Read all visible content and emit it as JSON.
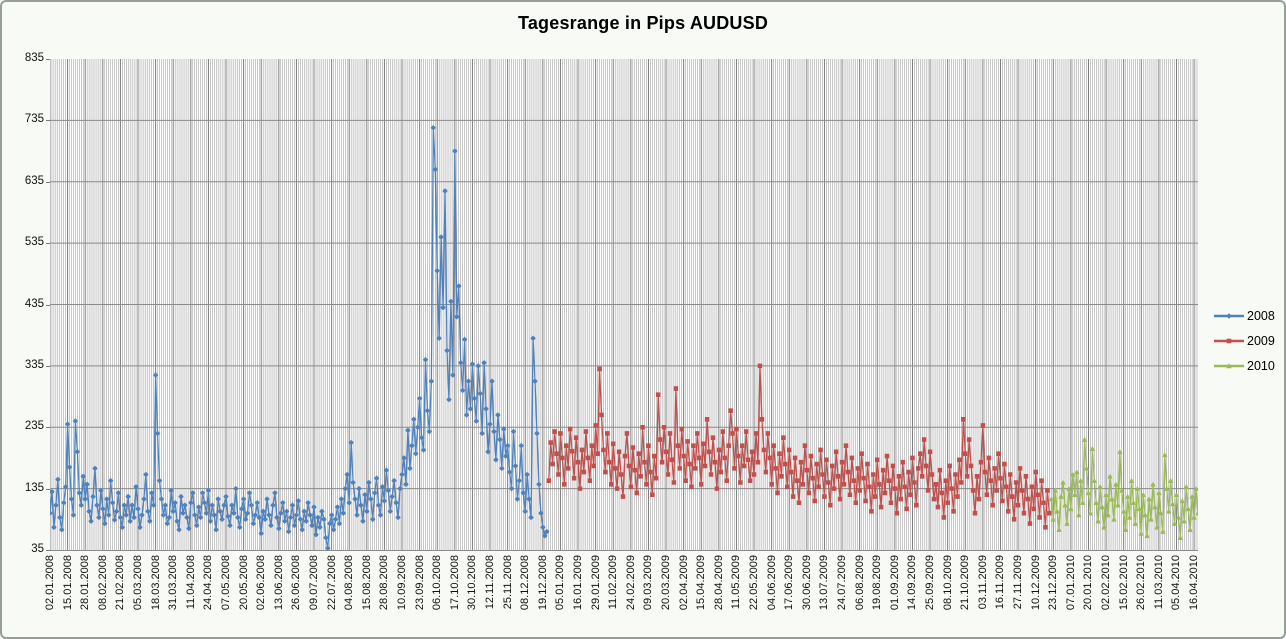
{
  "window": {
    "background": "#f7faf5",
    "border_color": "#96a096"
  },
  "chart_data": {
    "type": "line",
    "title": "Tagesrange in Pips AUDUSD",
    "xlabel": "",
    "ylabel": "",
    "ylim": [
      35,
      835
    ],
    "yticks": [
      35,
      135,
      235,
      335,
      435,
      535,
      635,
      735,
      835
    ],
    "grid": "dense-vertical-and-horizontal",
    "gridline_minor_color": "#9b9b9b",
    "gridline_major_color": "#7e7e7e",
    "legend_position": "right",
    "n_points": 588,
    "x_label_interval": 9,
    "x_labels": [
      "02.01.2008",
      "15.01.2008",
      "28.01.2008",
      "08.02.2008",
      "21.02.2008",
      "05.03.2008",
      "18.03.2008",
      "31.03.2008",
      "11.04.2008",
      "24.04.2008",
      "07.05.2008",
      "20.05.2008",
      "02.06.2008",
      "13.06.2008",
      "26.06.2008",
      "09.07.2008",
      "22.07.2008",
      "04.08.2008",
      "15.08.2008",
      "28.08.2008",
      "10.09.2008",
      "23.09.2008",
      "06.10.2008",
      "17.10.2008",
      "30.10.2008",
      "12.11.2008",
      "25.11.2008",
      "08.12.2008",
      "19.12.2008",
      "05.01.2009",
      "16.01.2009",
      "29.01.2009",
      "11.02.2009",
      "24.02.2009",
      "09.03.2009",
      "20.03.2009",
      "02.04.2009",
      "15.04.2009",
      "28.04.2009",
      "11.05.2009",
      "22.05.2009",
      "04.06.2009",
      "17.06.2009",
      "30.06.2009",
      "13.07.2009",
      "24.07.2009",
      "06.08.2009",
      "19.08.2009",
      "01.09.2009",
      "14.09.2009",
      "25.09.2009",
      "08.10.2009",
      "21.10.2009",
      "03.11.2009",
      "16.11.2009",
      "27.11.2009",
      "10.12.2009",
      "23.12.2009",
      "07.01.2010",
      "20.01.2010",
      "02.02.2010",
      "15.02.2010",
      "26.02.2010",
      "11.03.2010",
      "05.04.2010",
      "16.04.2010"
    ],
    "series": [
      {
        "name": "2008",
        "color": "#4F81BD",
        "marker": "diamond",
        "start_index": 0,
        "values": [
          95,
          130,
          72,
          108,
          150,
          88,
          68,
          112,
          138,
          240,
          170,
          118,
          92,
          245,
          195,
          128,
          108,
          155,
          118,
          142,
          98,
          82,
          122,
          168,
          108,
          88,
          132,
          102,
          78,
          118,
          92,
          148,
          112,
          84,
          98,
          128,
          88,
          72,
          108,
          92,
          122,
          82,
          108,
          88,
          138,
          102,
          72,
          92,
          118,
          158,
          98,
          82,
          128,
          108,
          320,
          225,
          148,
          118,
          92,
          108,
          78,
          88,
          132,
          98,
          112,
          82,
          68,
          122,
          95,
          108,
          88,
          70,
          112,
          128,
          92,
          75,
          105,
          88,
          128,
          112,
          95,
          132,
          82,
          108,
          92,
          68,
          118,
          98,
          85,
          108,
          122,
          90,
          75,
          108,
          95,
          135,
          88,
          72,
          102,
          118,
          85,
          95,
          128,
          108,
          78,
          92,
          112,
          88,
          62,
          98,
          85,
          118,
          92,
          75,
          108,
          128,
          88,
          70,
          95,
          112,
          82,
          98,
          65,
          88,
          108,
          75,
          92,
          115,
          85,
          68,
          98,
          82,
          112,
          92,
          75,
          105,
          60,
          88,
          72,
          98,
          85,
          55,
          38,
          78,
          92,
          68,
          85,
          105,
          78,
          118,
          95,
          135,
          158,
          112,
          210,
          145,
          118,
          92,
          135,
          108,
          82,
          125,
          98,
          145,
          118,
          85,
          128,
          152,
          108,
          92,
          138,
          115,
          165,
          132,
          98,
          122,
          148,
          112,
          88,
          135,
          158,
          185,
          142,
          230,
          168,
          205,
          248,
          192,
          235,
          282,
          218,
          198,
          345,
          262,
          228,
          310,
          723,
          655,
          490,
          380,
          545,
          430,
          620,
          360,
          280,
          440,
          320,
          685,
          415,
          465,
          340,
          295,
          378,
          255,
          310,
          265,
          338,
          282,
          245,
          335,
          290,
          225,
          340,
          265,
          195,
          240,
          310,
          228,
          182,
          255,
          215,
          168,
          232,
          188,
          205,
          162,
          135,
          228,
          172,
          118,
          148,
          205,
          128,
          98,
          158,
          118,
          88,
          380,
          310,
          225,
          142,
          95,
          72,
          58,
          65
        ]
      },
      {
        "name": "2009",
        "color": "#C0504D",
        "marker": "square",
        "start_index": 255,
        "values": [
          148,
          210,
          175,
          228,
          192,
          158,
          225,
          185,
          142,
          205,
          168,
          232,
          196,
          152,
          218,
          178,
          135,
          198,
          162,
          228,
          185,
          148,
          205,
          172,
          238,
          192,
          330,
          255,
          198,
          162,
          225,
          178,
          142,
          208,
          168,
          135,
          195,
          158,
          122,
          188,
          225,
          172,
          138,
          202,
          165,
          128,
          192,
          155,
          235,
          178,
          142,
          205,
          162,
          125,
          188,
          152,
          288,
          215,
          178,
          235,
          195,
          158,
          225,
          182,
          145,
          298,
          205,
          168,
          232,
          188,
          148,
          212,
          175,
          138,
          205,
          168,
          225,
          185,
          142,
          208,
          172,
          248,
          195,
          158,
          218,
          178,
          135,
          198,
          162,
          228,
          185,
          148,
          205,
          262,
          225,
          168,
          232,
          188,
          145,
          205,
          172,
          228,
          182,
          148,
          195,
          158,
          225,
          178,
          335,
          248,
          198,
          162,
          225,
          185,
          142,
          205,
          168,
          128,
          192,
          155,
          218,
          175,
          138,
          198,
          162,
          122,
          185,
          148,
          112,
          178,
          142,
          205,
          165,
          128,
          188,
          152,
          115,
          175,
          138,
          198,
          158,
          122,
          182,
          145,
          108,
          172,
          135,
          195,
          155,
          118,
          178,
          142,
          205,
          162,
          125,
          185,
          148,
          112,
          168,
          132,
          192,
          152,
          115,
          175,
          138,
          98,
          158,
          122,
          182,
          142,
          105,
          165,
          128,
          188,
          148,
          112,
          172,
          135,
          95,
          155,
          118,
          178,
          138,
          102,
          162,
          125,
          185,
          145,
          108,
          168,
          192,
          155,
          215,
          172,
          132,
          195,
          158,
          118,
          142,
          105,
          165,
          128,
          88,
          148,
          112,
          172,
          135,
          98,
          158,
          122,
          182,
          145,
          248,
          192,
          155,
          215,
          172,
          132,
          95,
          155,
          118,
          178,
          238,
          162,
          125,
          185,
          148,
          108,
          168,
          132,
          192,
          152,
          115,
          175,
          138,
          98,
          158,
          122,
          85,
          145,
          108,
          168,
          132,
          95,
          155,
          118,
          78,
          138,
          102,
          162,
          125,
          88,
          148,
          112,
          72,
          132,
          95
        ]
      },
      {
        "name": "2010",
        "color": "#9BBB59",
        "marker": "triangle",
        "start_index": 512,
        "values": [
          118,
          85,
          132,
          98,
          68,
          122,
          145,
          108,
          78,
          135,
          102,
          158,
          125,
          162,
          92,
          148,
          112,
          215,
          168,
          128,
          95,
          200,
          148,
          112,
          82,
          138,
          105,
          72,
          125,
          92,
          155,
          118,
          85,
          142,
          108,
          195,
          132,
          98,
          68,
          122,
          88,
          148,
          112,
          78,
          135,
          102,
          62,
          125,
          92,
          58,
          118,
          85,
          142,
          105,
          72,
          128,
          95,
          65,
          190,
          135,
          98,
          148,
          110,
          78,
          125,
          88,
          55,
          115,
          82,
          138,
          102,
          68,
          122,
          88,
          135,
          95
        ]
      }
    ]
  }
}
